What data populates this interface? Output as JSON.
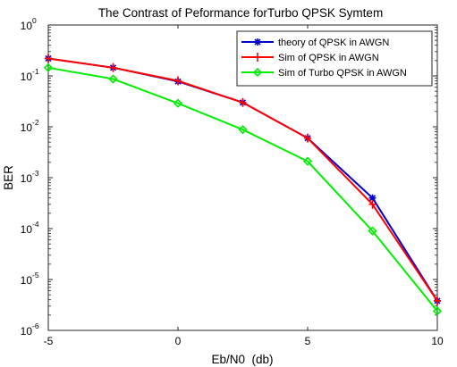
{
  "chart_data": {
    "type": "line",
    "title": "The Contrast of Peformance forTurbo QPSK Symtem",
    "xlabel": "Eb/N0  (db)",
    "ylabel": "BER",
    "x": [
      -5,
      -2.5,
      0,
      2.5,
      5,
      7.5,
      10
    ],
    "xlim": [
      -5,
      10
    ],
    "ylim": [
      1e-06,
      1
    ],
    "yscale": "log",
    "xticks": [
      -5,
      0,
      5,
      10
    ],
    "xtick_labels": [
      "-5",
      "0",
      "5",
      "10"
    ],
    "yticks": [
      {
        "value": 1e-06,
        "base": "10",
        "exp": "-6"
      },
      {
        "value": 1e-05,
        "base": "10",
        "exp": "-5"
      },
      {
        "value": 0.0001,
        "base": "10",
        "exp": "-4"
      },
      {
        "value": 0.001,
        "base": "10",
        "exp": "-3"
      },
      {
        "value": 0.01,
        "base": "10",
        "exp": "-2"
      },
      {
        "value": 0.1,
        "base": "10",
        "exp": "-1"
      },
      {
        "value": 1,
        "base": "10",
        "exp": "0"
      }
    ],
    "grid": false,
    "legend_position": "top-right",
    "series": [
      {
        "name": "theory of QPSK in AWGN",
        "color": "#0000cc",
        "marker": "asterisk",
        "values": [
          0.22,
          0.145,
          0.078,
          0.03,
          0.006,
          0.0004,
          3.8e-06
        ]
      },
      {
        "name": "Sim of QPSK in AWGN",
        "color": "#ff0000",
        "marker": "plus",
        "values": [
          0.22,
          0.145,
          0.08,
          0.03,
          0.006,
          0.0003,
          3.8e-06
        ]
      },
      {
        "name": "Sim of Turbo QPSK in AWGN",
        "color": "#00ee00",
        "marker": "diamond",
        "values": [
          0.145,
          0.087,
          0.029,
          0.0088,
          0.0021,
          9e-05,
          2.4e-06
        ]
      }
    ]
  }
}
